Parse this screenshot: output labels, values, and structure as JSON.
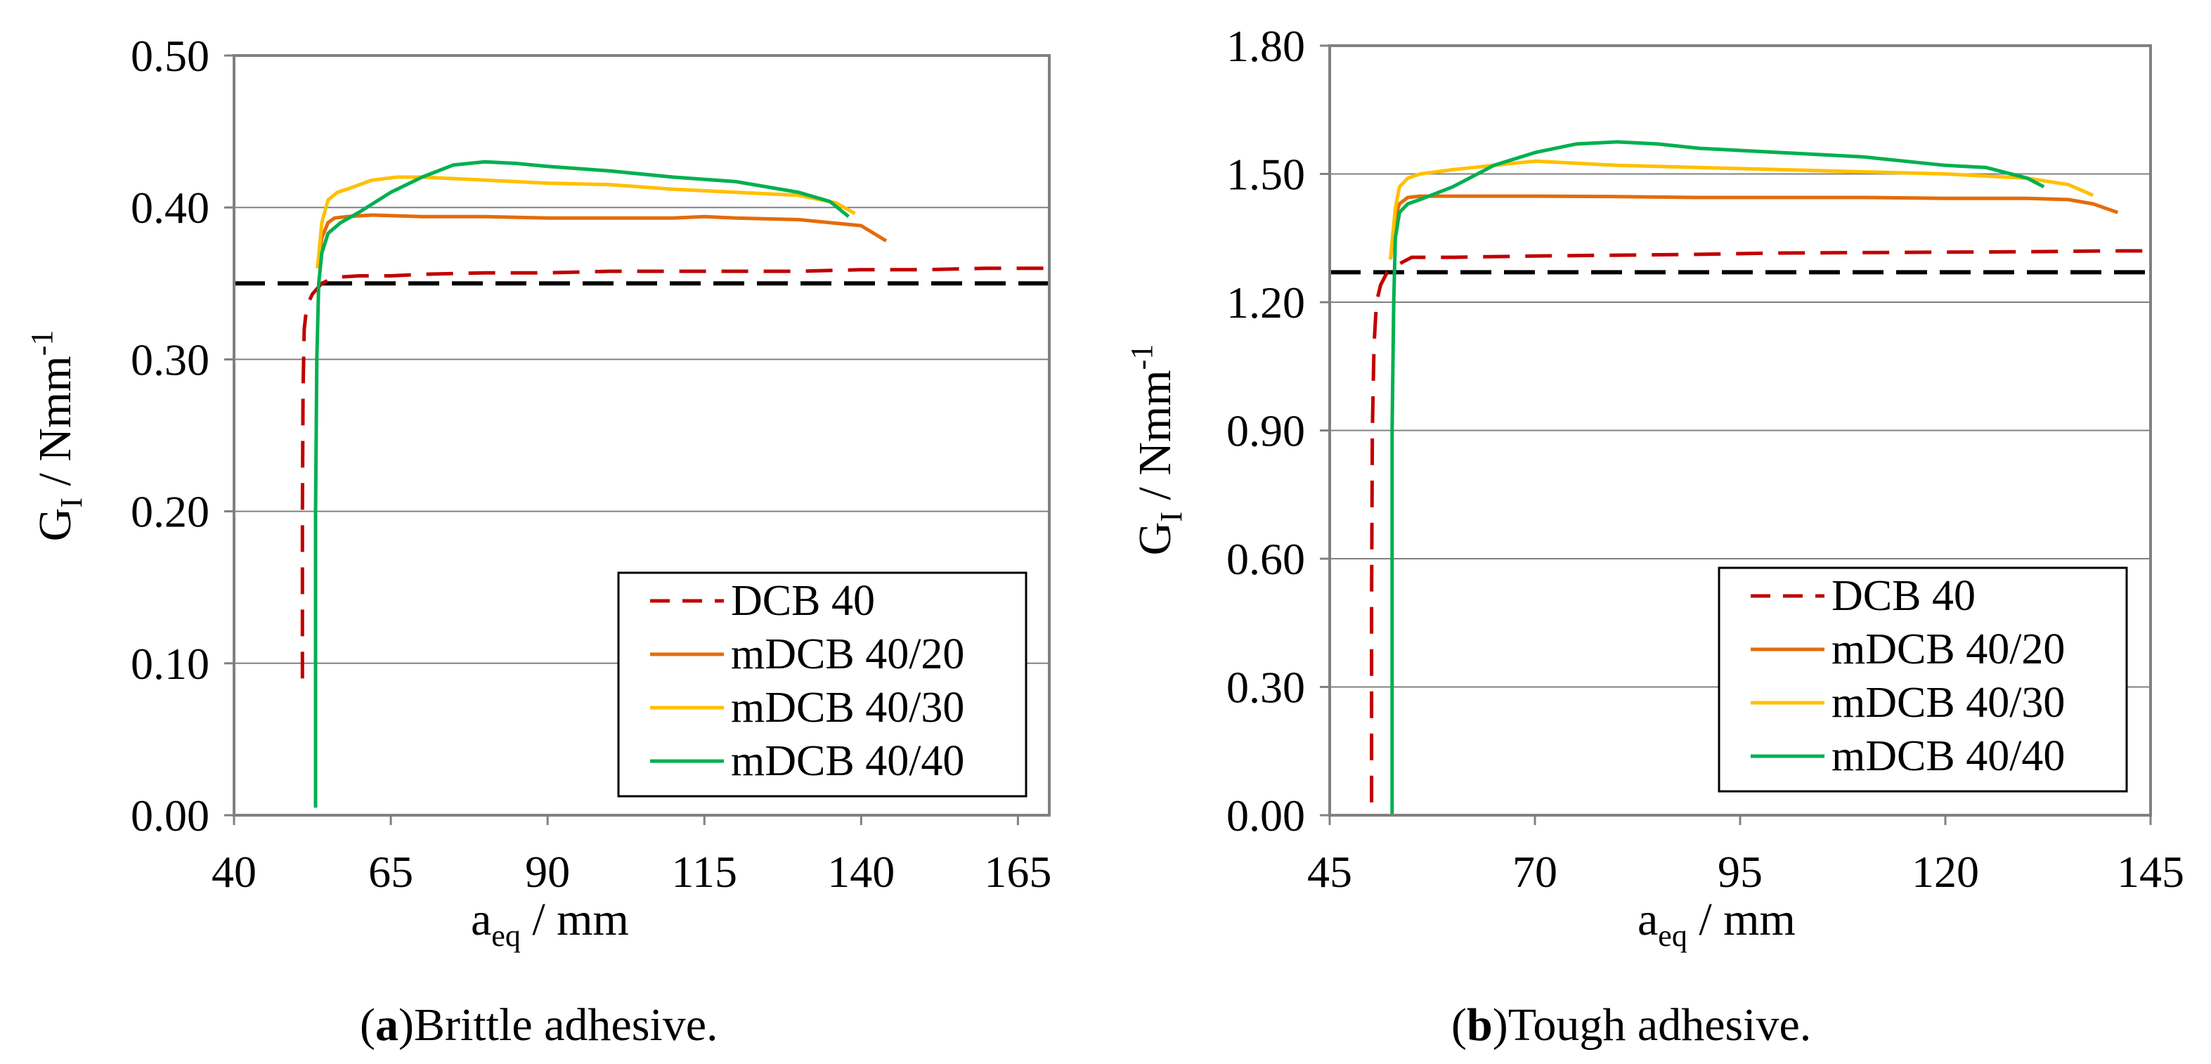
{
  "colors": {
    "dcb": "#c00000",
    "mdcb20": "#e36c0a",
    "mdcb30": "#ffc000",
    "mdcb40": "#00b050",
    "reference": "#000000",
    "grid": "#808080"
  },
  "chart_data": [
    {
      "id": "a",
      "type": "line",
      "caption_letter": "a",
      "caption_text": "Brittle adhesive.",
      "xlabel_main": "a",
      "xlabel_sub": "eq",
      "xlabel_unit": " / mm",
      "ylabel_main": "G",
      "ylabel_sub": "I",
      "ylabel_unit": " / Nmm",
      "ylabel_sup": "-1",
      "xlim": [
        40,
        170
      ],
      "ylim": [
        0,
        0.5
      ],
      "xticks": [
        40,
        65,
        90,
        115,
        140,
        165
      ],
      "xtick_labels": [
        "40",
        "65",
        "90",
        "115",
        "140",
        "165"
      ],
      "yticks": [
        0,
        0.1,
        0.2,
        0.3,
        0.4,
        0.5
      ],
      "ytick_labels": [
        "0.00",
        "0.10",
        "0.20",
        "0.30",
        "0.40",
        "0.50"
      ],
      "grid": "horizontal",
      "legend_position": "bottom-right",
      "reference_line": {
        "y": 0.35,
        "x": [
          40,
          170
        ]
      },
      "series": [
        {
          "key": "dcb",
          "name": "DCB 40",
          "style": "dashed",
          "x": [
            50.9,
            50.9,
            51.0,
            51.2,
            51.6,
            52.5,
            54.0,
            56,
            60,
            65,
            70,
            80,
            90,
            100,
            110,
            120,
            130,
            140,
            150,
            160,
            170
          ],
          "y": [
            0.09,
            0.2,
            0.28,
            0.32,
            0.335,
            0.343,
            0.35,
            0.354,
            0.355,
            0.355,
            0.356,
            0.357,
            0.357,
            0.358,
            0.358,
            0.358,
            0.358,
            0.359,
            0.359,
            0.36,
            0.36
          ]
        },
        {
          "key": "mdcb20",
          "name": "mDCB 40/20",
          "style": "solid",
          "x": [
            53.3,
            54.0,
            55.0,
            56.0,
            58,
            62,
            70,
            80,
            90,
            100,
            110,
            115,
            120,
            130,
            140,
            144
          ],
          "y": [
            0.36,
            0.38,
            0.39,
            0.393,
            0.394,
            0.395,
            0.394,
            0.394,
            0.393,
            0.393,
            0.393,
            0.394,
            0.393,
            0.392,
            0.388,
            0.378
          ]
        },
        {
          "key": "mdcb30",
          "name": "mDCB 40/30",
          "style": "solid",
          "x": [
            53.3,
            54.0,
            55.0,
            56.5,
            58,
            62,
            66,
            70,
            80,
            90,
            100,
            110,
            120,
            130,
            136,
            139
          ],
          "y": [
            0.36,
            0.39,
            0.405,
            0.41,
            0.412,
            0.418,
            0.42,
            0.42,
            0.418,
            0.416,
            0.415,
            0.412,
            0.41,
            0.408,
            0.403,
            0.396
          ]
        },
        {
          "key": "mdcb40",
          "name": "mDCB 40/40",
          "style": "solid",
          "x": [
            53.0,
            53.0,
            53.2,
            53.5,
            54.0,
            55,
            57,
            60,
            65,
            70,
            75,
            80,
            85,
            90,
            100,
            110,
            120,
            130,
            135,
            138
          ],
          "y": [
            0.005,
            0.2,
            0.3,
            0.35,
            0.37,
            0.383,
            0.39,
            0.397,
            0.41,
            0.42,
            0.428,
            0.43,
            0.429,
            0.427,
            0.424,
            0.42,
            0.417,
            0.41,
            0.404,
            0.394
          ]
        }
      ]
    },
    {
      "id": "b",
      "type": "line",
      "caption_letter": "b",
      "caption_text": "Tough adhesive.",
      "xlabel_main": "a",
      "xlabel_sub": "eq",
      "xlabel_unit": " / mm",
      "ylabel_main": "G",
      "ylabel_sub": "I",
      "ylabel_unit": " / Nmm",
      "ylabel_sup": "-1",
      "xlim": [
        45,
        145
      ],
      "ylim": [
        0,
        1.8
      ],
      "xticks": [
        45,
        70,
        95,
        120,
        145
      ],
      "xtick_labels": [
        "45",
        "70",
        "95",
        "120",
        "145"
      ],
      "yticks": [
        0,
        0.3,
        0.6,
        0.9,
        1.2,
        1.5,
        1.8
      ],
      "ytick_labels": [
        "0.00",
        "0.30",
        "0.60",
        "0.90",
        "1.20",
        "1.50",
        "1.80"
      ],
      "grid": "horizontal",
      "legend_position": "bottom-right",
      "reference_line": {
        "y": 1.27,
        "x": [
          45,
          145
        ]
      },
      "series": [
        {
          "key": "dcb",
          "name": "DCB 40",
          "style": "dashed",
          "x": [
            50.1,
            50.1,
            50.2,
            50.4,
            50.7,
            51.2,
            52.0,
            53.5,
            55,
            60,
            70,
            80,
            90,
            100,
            110,
            120,
            130,
            140,
            145
          ],
          "y": [
            0.03,
            0.5,
            0.9,
            1.1,
            1.2,
            1.24,
            1.27,
            1.29,
            1.305,
            1.305,
            1.308,
            1.31,
            1.312,
            1.315,
            1.316,
            1.317,
            1.318,
            1.32,
            1.32
          ]
        },
        {
          "key": "mdcb20",
          "name": "mDCB 40/20",
          "style": "solid",
          "x": [
            52.4,
            53.0,
            53.5,
            54.5,
            56,
            60,
            70,
            80,
            90,
            100,
            110,
            120,
            130,
            135,
            138,
            141
          ],
          "y": [
            1.3,
            1.4,
            1.43,
            1.445,
            1.448,
            1.448,
            1.448,
            1.447,
            1.445,
            1.445,
            1.445,
            1.443,
            1.443,
            1.44,
            1.43,
            1.41
          ]
        },
        {
          "key": "mdcb30",
          "name": "mDCB 40/30",
          "style": "solid",
          "x": [
            52.4,
            53.0,
            53.5,
            54.5,
            56,
            60,
            65,
            70,
            75,
            80,
            90,
            100,
            110,
            120,
            130,
            135,
            138
          ],
          "y": [
            1.3,
            1.42,
            1.47,
            1.49,
            1.5,
            1.51,
            1.52,
            1.53,
            1.525,
            1.52,
            1.515,
            1.51,
            1.505,
            1.5,
            1.49,
            1.475,
            1.45
          ]
        },
        {
          "key": "mdcb40",
          "name": "mDCB 40/40",
          "style": "solid",
          "x": [
            52.6,
            52.6,
            52.8,
            53.0,
            53.5,
            54.5,
            56,
            60,
            65,
            70,
            75,
            80,
            85,
            90,
            100,
            110,
            120,
            125,
            130,
            132
          ],
          "y": [
            0.0,
            0.9,
            1.2,
            1.35,
            1.41,
            1.43,
            1.44,
            1.47,
            1.52,
            1.55,
            1.57,
            1.575,
            1.57,
            1.56,
            1.55,
            1.54,
            1.52,
            1.515,
            1.49,
            1.47
          ]
        }
      ]
    }
  ]
}
